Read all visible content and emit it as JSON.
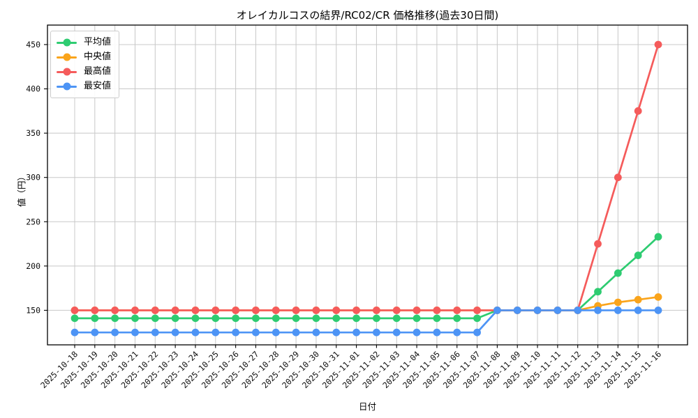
{
  "title": "オレイカルコスの結界/RC02/CR 価格推移(過去30日間)",
  "chart_data": {
    "type": "line",
    "title": "オレイカルコスの結界/RC02/CR 価格推移(過去30日間)",
    "xlabel": "日付",
    "ylabel": "値（円）",
    "grid": true,
    "legend_position": "upper left",
    "marker": "circle",
    "background": "#ffffff",
    "grid_color": "#c8c8c8",
    "yticks": [
      150,
      200,
      250,
      300,
      350,
      400,
      450
    ],
    "ylim": [
      111,
      472
    ],
    "x": [
      "2025-10-18",
      "2025-10-19",
      "2025-10-20",
      "2025-10-21",
      "2025-10-22",
      "2025-10-23",
      "2025-10-24",
      "2025-10-25",
      "2025-10-26",
      "2025-10-27",
      "2025-10-28",
      "2025-10-29",
      "2025-10-30",
      "2025-10-31",
      "2025-11-01",
      "2025-11-02",
      "2025-11-03",
      "2025-11-04",
      "2025-11-05",
      "2025-11-06",
      "2025-11-07",
      "2025-11-08",
      "2025-11-09",
      "2025-11-10",
      "2025-11-11",
      "2025-11-12",
      "2025-11-13",
      "2025-11-14",
      "2025-11-15",
      "2025-11-16"
    ],
    "series": [
      {
        "name": "平均値",
        "color": "#2ecc71",
        "values": [
          141,
          141,
          141,
          141,
          141,
          141,
          141,
          141,
          141,
          141,
          141,
          141,
          141,
          141,
          141,
          141,
          141,
          141,
          141,
          141,
          141,
          150,
          150,
          150,
          150,
          150,
          171,
          192,
          212,
          233
        ]
      },
      {
        "name": "中央値",
        "color": "#faa41b",
        "values": [
          150,
          150,
          150,
          150,
          150,
          150,
          150,
          150,
          150,
          150,
          150,
          150,
          150,
          150,
          150,
          150,
          150,
          150,
          150,
          150,
          150,
          150,
          150,
          150,
          150,
          150,
          155,
          159,
          162,
          165
        ]
      },
      {
        "name": "最高値",
        "color": "#f55b5b",
        "values": [
          150,
          150,
          150,
          150,
          150,
          150,
          150,
          150,
          150,
          150,
          150,
          150,
          150,
          150,
          150,
          150,
          150,
          150,
          150,
          150,
          150,
          150,
          150,
          150,
          150,
          150,
          225,
          300,
          375,
          450
        ]
      },
      {
        "name": "最安値",
        "color": "#4d94f5",
        "values": [
          125,
          125,
          125,
          125,
          125,
          125,
          125,
          125,
          125,
          125,
          125,
          125,
          125,
          125,
          125,
          125,
          125,
          125,
          125,
          125,
          125,
          150,
          150,
          150,
          150,
          150,
          150,
          150,
          150,
          150
        ]
      }
    ]
  }
}
